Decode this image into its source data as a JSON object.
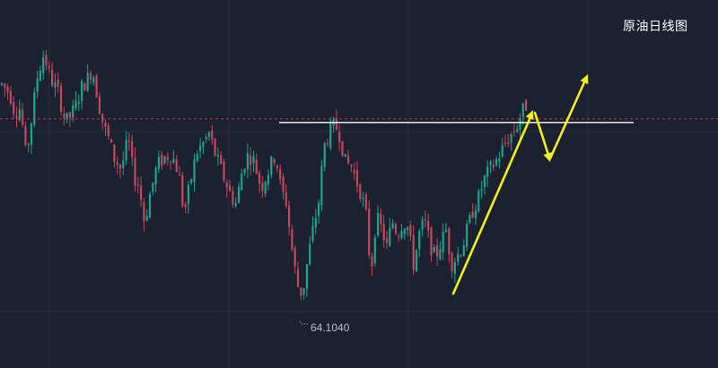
{
  "chart_data": {
    "type": "candlestick",
    "title": "原油日线图",
    "low_marker_label": "64.1040",
    "grid": true,
    "legend": "none",
    "colors": {
      "background": "#1b2130",
      "grid": "#283040",
      "up": "#1fa38f",
      "down": "#c3485c",
      "dashed_line": "#b04454",
      "resistance_line": "#ffffff",
      "arrows": "#f2f21a"
    },
    "price_range": [
      64,
      80
    ],
    "resistance_level": 74.9,
    "dashed_price_level": 75.1,
    "low_value": 64.104
  }
}
